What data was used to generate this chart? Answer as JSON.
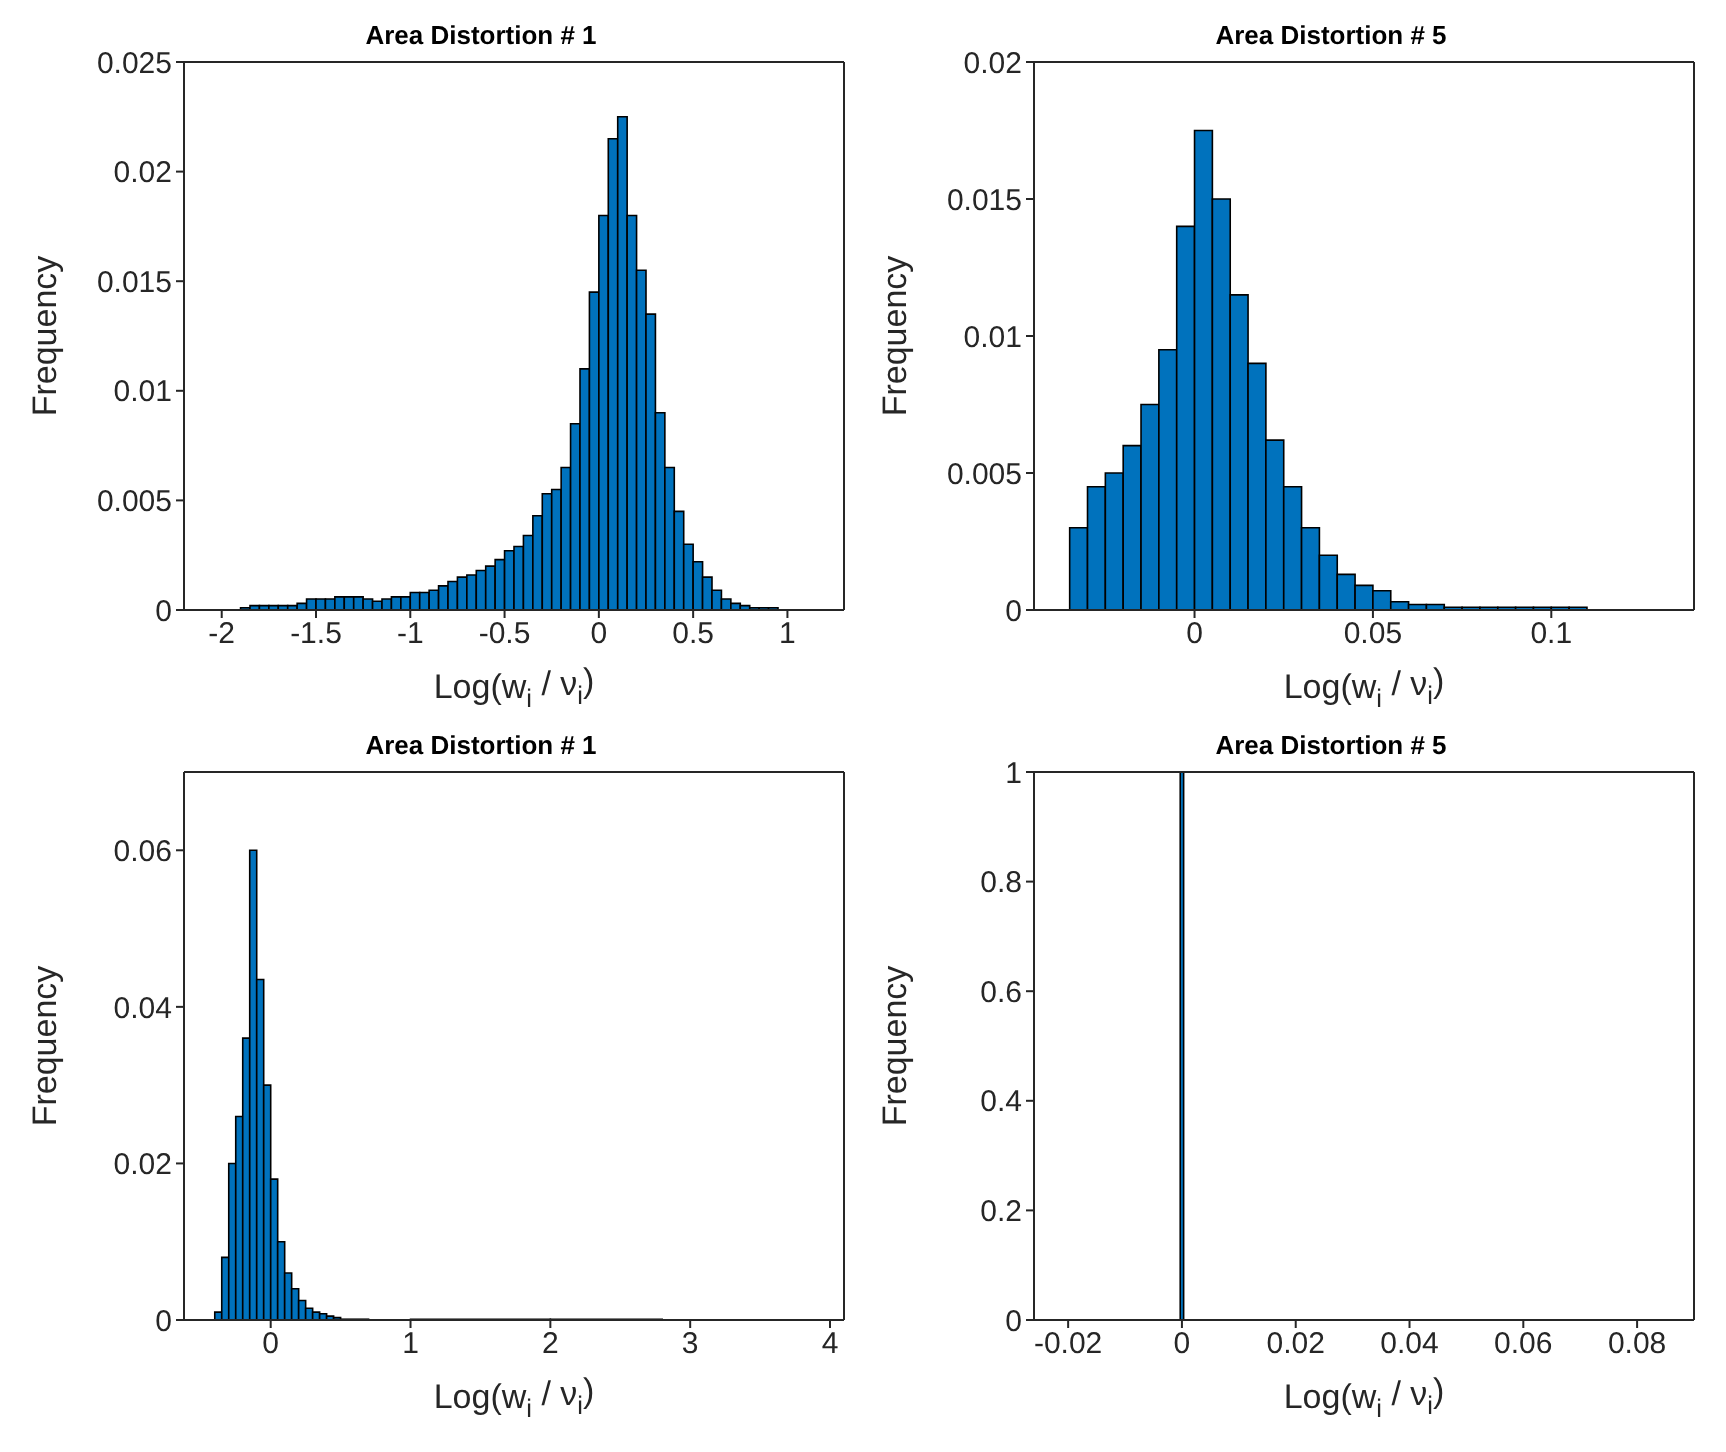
{
  "chart_data": [
    {
      "type": "histogram",
      "title": "Area Distortion # 1",
      "xlabel": "Log(w$_{i}$ / ν$_{i}$)",
      "ylabel": "Frequency",
      "color": "#0072bd",
      "xlim": [
        -2.2,
        1.3
      ],
      "xticks": [
        -2,
        -1.5,
        -1,
        -0.5,
        0,
        0.5,
        1
      ],
      "ylim": [
        0,
        0.025
      ],
      "yticks": [
        0,
        0.005,
        0.01,
        0.015,
        0.02,
        0.025
      ],
      "bins": [
        -1.9,
        -1.85,
        -1.8,
        -1.75,
        -1.7,
        -1.65,
        -1.6,
        -1.55,
        -1.5,
        -1.45,
        -1.4,
        -1.35,
        -1.3,
        -1.25,
        -1.2,
        -1.15,
        -1.1,
        -1.05,
        -1.0,
        -0.95,
        -0.9,
        -0.85,
        -0.8,
        -0.75,
        -0.7,
        -0.65,
        -0.6,
        -0.55,
        -0.5,
        -0.45,
        -0.4,
        -0.35,
        -0.3,
        -0.25,
        -0.2,
        -0.15,
        -0.1,
        -0.05,
        0,
        0.05,
        0.1,
        0.15,
        0.2,
        0.25,
        0.3,
        0.35,
        0.4,
        0.45,
        0.5,
        0.55,
        0.6,
        0.65,
        0.7,
        0.75,
        0.8,
        0.85,
        0.9,
        0.95
      ],
      "values": [
        0.0001,
        0.0002,
        0.0002,
        0.0002,
        0.0002,
        0.0002,
        0.0003,
        0.0005,
        0.0005,
        0.0005,
        0.0006,
        0.0006,
        0.0006,
        0.0005,
        0.0004,
        0.0005,
        0.0006,
        0.0006,
        0.0008,
        0.0008,
        0.0009,
        0.0011,
        0.0013,
        0.0015,
        0.0016,
        0.0018,
        0.002,
        0.0023,
        0.0027,
        0.0029,
        0.0034,
        0.0043,
        0.0053,
        0.0055,
        0.0065,
        0.0085,
        0.011,
        0.0145,
        0.018,
        0.0215,
        0.0225,
        0.018,
        0.0155,
        0.0135,
        0.009,
        0.0065,
        0.0045,
        0.003,
        0.0022,
        0.0015,
        0.0009,
        0.0005,
        0.0003,
        0.0002,
        0.0001,
        0.0001,
        0.0001
      ]
    },
    {
      "type": "histogram",
      "title": "Area Distortion # 5",
      "xlabel": "Log(w$_{i}$ / ν$_{i}$)",
      "ylabel": "Frequency",
      "color": "#0072bd",
      "xlim": [
        -0.045,
        0.14
      ],
      "xticks": [
        0,
        0.05,
        0.1
      ],
      "ylim": [
        0,
        0.02
      ],
      "yticks": [
        0,
        0.005,
        0.01,
        0.015,
        0.02
      ],
      "bins": [
        -0.035,
        -0.03,
        -0.025,
        -0.02,
        -0.015,
        -0.01,
        -0.005,
        0,
        0.005,
        0.01,
        0.015,
        0.02,
        0.025,
        0.03,
        0.035,
        0.04,
        0.045,
        0.05,
        0.055,
        0.06,
        0.065,
        0.07,
        0.075,
        0.08,
        0.085,
        0.09,
        0.095,
        0.1,
        0.105,
        0.11
      ],
      "values": [
        0.003,
        0.0045,
        0.005,
        0.006,
        0.0075,
        0.0095,
        0.014,
        0.0175,
        0.015,
        0.0115,
        0.009,
        0.0062,
        0.0045,
        0.003,
        0.002,
        0.0013,
        0.0009,
        0.0007,
        0.0003,
        0.0002,
        0.0002,
        0.0001,
        0.0001,
        0.0001,
        0.0001,
        0.0001,
        0.0001,
        0.0001,
        0.0001
      ]
    },
    {
      "type": "histogram",
      "title": "Area Distortion # 1",
      "xlabel": "Log(w$_{i}$ / ν$_{i}$)",
      "ylabel": "Frequency",
      "color": "#0072bd",
      "xlim": [
        -0.62,
        4.1
      ],
      "xticks": [
        0,
        1,
        2,
        3,
        4
      ],
      "ylim": [
        0,
        0.07
      ],
      "yticks": [
        0,
        0.02,
        0.04,
        0.06
      ],
      "bins": [
        -0.4,
        -0.35,
        -0.3,
        -0.25,
        -0.2,
        -0.15,
        -0.1,
        -0.05,
        0,
        0.05,
        0.1,
        0.15,
        0.2,
        0.25,
        0.3,
        0.35,
        0.4,
        0.45,
        0.5,
        0.7,
        1.0,
        2.0,
        2.8
      ],
      "values": [
        0.001,
        0.008,
        0.02,
        0.026,
        0.036,
        0.06,
        0.0435,
        0.03,
        0.018,
        0.01,
        0.006,
        0.004,
        0.0025,
        0.0015,
        0.001,
        0.0008,
        0.0005,
        0.0003,
        0.0001,
        0,
        0.0001,
        0.0001
      ]
    },
    {
      "type": "histogram",
      "title": "Area Distortion # 5",
      "xlabel": "Log(w$_{i}$ / ν$_{i}$)",
      "ylabel": "Frequency",
      "color": "#0072bd",
      "xlim": [
        -0.026,
        0.09
      ],
      "xticks": [
        -0.02,
        0,
        0.02,
        0.04,
        0.06,
        0.08
      ],
      "ylim": [
        0,
        1
      ],
      "yticks": [
        0,
        0.2,
        0.4,
        0.6,
        0.8,
        1
      ],
      "bins": [
        -0.0003,
        0.0003
      ],
      "values": [
        1
      ]
    }
  ]
}
